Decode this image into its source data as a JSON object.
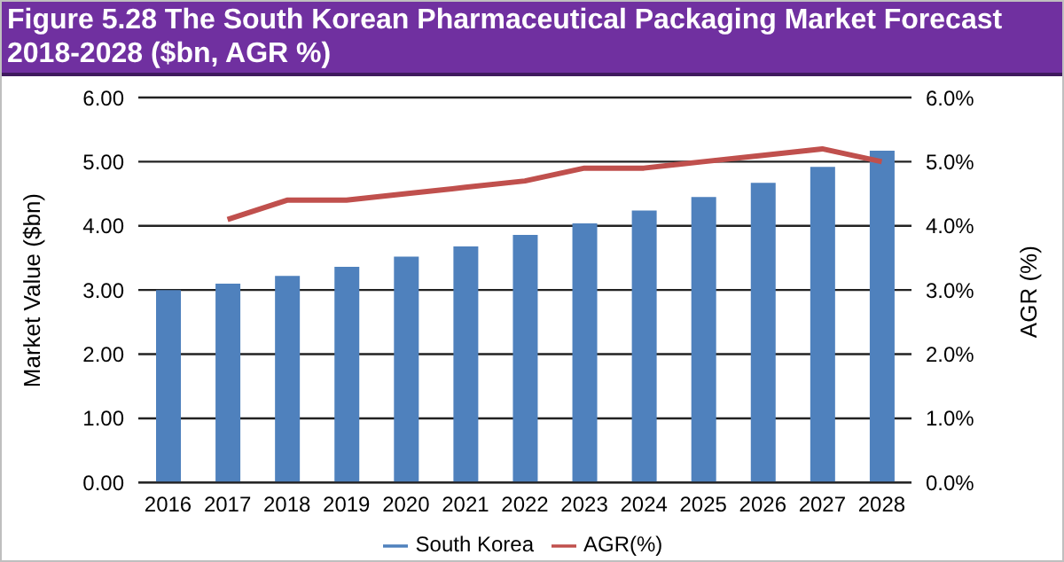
{
  "chart_data": {
    "type": "bar",
    "title": "Figure 5.28 The South Korean Pharmaceutical Packaging Market Forecast 2018-2028 ($bn, AGR %)",
    "categories": [
      "2016",
      "2017",
      "2018",
      "2019",
      "2020",
      "2021",
      "2022",
      "2023",
      "2024",
      "2025",
      "2026",
      "2027",
      "2028"
    ],
    "series": [
      {
        "name": "South Korea",
        "color": "#4f81bd",
        "values": [
          3.0,
          3.1,
          3.22,
          3.36,
          3.52,
          3.68,
          3.86,
          4.04,
          4.24,
          4.45,
          4.67,
          4.92,
          5.17
        ]
      },
      {
        "name": "AGR(%)",
        "type": "line",
        "axis": "y2",
        "color": "#c0504d",
        "values": [
          null,
          4.1,
          4.4,
          4.4,
          4.5,
          4.6,
          4.7,
          4.9,
          4.9,
          5.0,
          5.1,
          5.2,
          5.0
        ]
      }
    ],
    "ylabel": "Market Value ($bn)",
    "y2label": "AGR (%)",
    "ylim": [
      0,
      6
    ],
    "yticks": [
      {
        "value": 0,
        "label": "0.00"
      },
      {
        "value": 1,
        "label": "1.00"
      },
      {
        "value": 2,
        "label": "2.00"
      },
      {
        "value": 3,
        "label": "3.00"
      },
      {
        "value": 4,
        "label": "4.00"
      },
      {
        "value": 5,
        "label": "5.00"
      },
      {
        "value": 6,
        "label": "6.00"
      }
    ],
    "y2lim": [
      0,
      6
    ],
    "y2ticks": [
      {
        "value": 0,
        "label": "0.0%"
      },
      {
        "value": 1,
        "label": "1.0%"
      },
      {
        "value": 2,
        "label": "2.0%"
      },
      {
        "value": 3,
        "label": "3.0%"
      },
      {
        "value": 4,
        "label": "4.0%"
      },
      {
        "value": 5,
        "label": "5.0%"
      },
      {
        "value": 6,
        "label": "6.0%"
      }
    ],
    "grid": "y",
    "legend": "bottom",
    "marker": "none",
    "line_style": "solid"
  }
}
